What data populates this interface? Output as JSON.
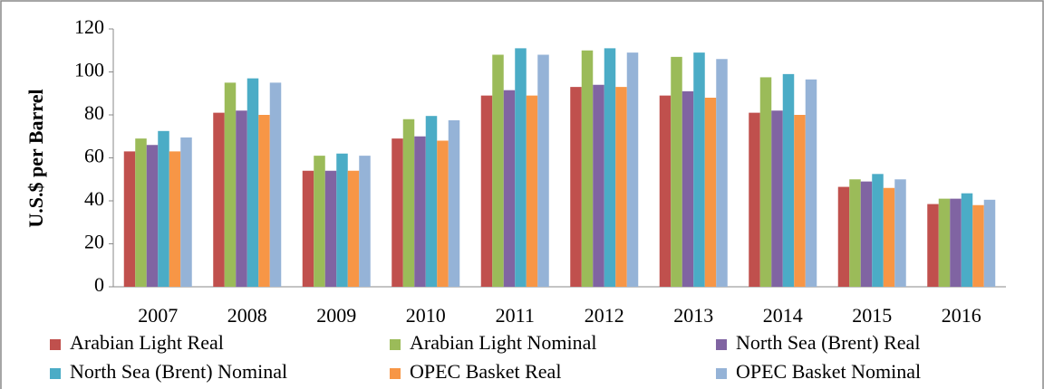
{
  "chart_data": {
    "type": "bar",
    "y_label": "U.S.$ per Barrel",
    "categories": [
      "2007",
      "2008",
      "2009",
      "2010",
      "2011",
      "2012",
      "2013",
      "2014",
      "2015",
      "2016"
    ],
    "series": [
      {
        "name": "Arabian Light Real",
        "color": "#c0504d",
        "values": [
          63,
          81,
          54,
          69,
          89,
          93,
          89,
          81,
          46.5,
          38.5
        ]
      },
      {
        "name": "Arabian Light Nominal",
        "color": "#9bbb59",
        "values": [
          69,
          95,
          61,
          78,
          108,
          110,
          107,
          97.5,
          50,
          41
        ]
      },
      {
        "name": "North Sea (Brent) Real",
        "color": "#8064a2",
        "values": [
          66,
          82,
          54,
          70,
          91.5,
          94,
          91,
          82,
          49,
          41
        ]
      },
      {
        "name": "North Sea (Brent) Nominal",
        "color": "#4bacc6",
        "values": [
          72.5,
          97,
          62,
          79.5,
          111,
          111,
          109,
          99,
          52.5,
          43.5
        ]
      },
      {
        "name": "OPEC Basket Real",
        "color": "#f79646",
        "values": [
          63,
          80,
          54,
          68,
          89,
          93,
          88,
          80,
          46,
          38
        ]
      },
      {
        "name": "OPEC Basket Nominal",
        "color": "#95b3d7",
        "values": [
          69.5,
          95,
          61,
          77.5,
          108,
          109,
          106,
          96.5,
          50,
          40.5
        ]
      }
    ],
    "ylim": [
      0,
      120
    ],
    "yticks": [
      0,
      20,
      40,
      60,
      80,
      100,
      120
    ],
    "grid": false
  }
}
